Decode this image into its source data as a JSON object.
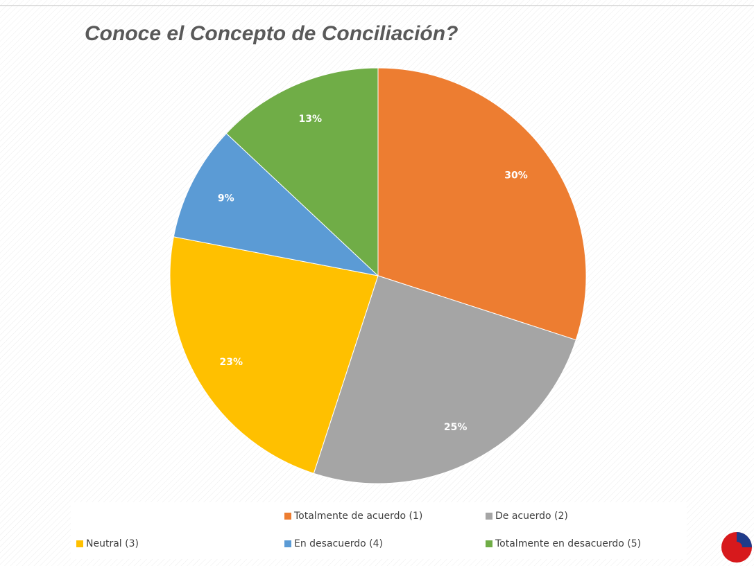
{
  "chart_data": {
    "type": "pie",
    "title": "Conoce el Concepto de Conciliación?",
    "categories": [
      "Totalmente de acuerdo (1)",
      "De acuerdo (2)",
      "Neutral (3)",
      "En desacuerdo (4)",
      "Totalmente en desacuerdo (5)"
    ],
    "values": [
      30,
      25,
      23,
      9,
      13
    ],
    "value_labels": [
      "30%",
      "25%",
      "23%",
      "9%",
      "13%"
    ],
    "colors": [
      "#ED7D31",
      "#A5A5A5",
      "#FFC000",
      "#5B9BD5",
      "#70AD47"
    ],
    "legend": "bottom"
  }
}
